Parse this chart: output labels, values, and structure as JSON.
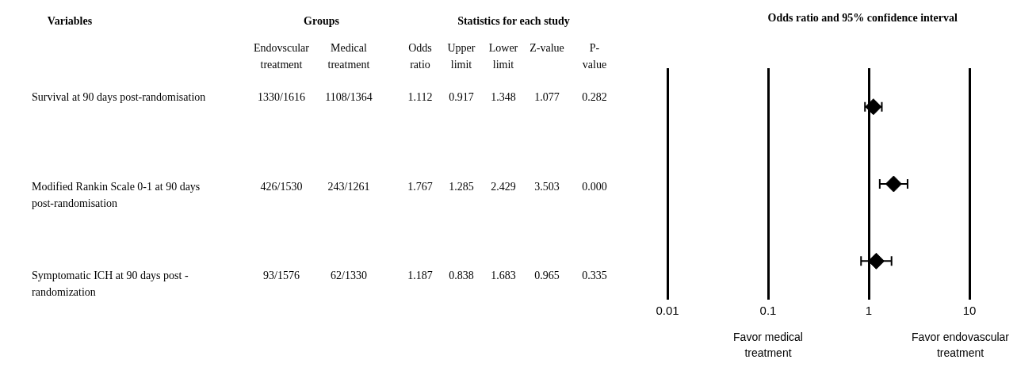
{
  "chart_data": [
    {
      "type": "other",
      "title": "Variables",
      "annotations": [
        "Groups",
        "Statistics for each study"
      ],
      "categories": [
        "Endovscular treatment",
        "Medical treatment",
        "Odds ratio",
        "Upper limit",
        "Lower limit",
        "Z-value",
        "P-value"
      ],
      "y_categories": [
        "Survival at 90 days post-randomisation",
        "Modified Rankin Scale 0-1 at 90 days post-randomisation",
        "Symptomatic ICH at 90 days post -randomization"
      ],
      "cell_labels": [
        [
          "1330/1616",
          "1108/1364",
          "1.112",
          "0.917",
          "1.348",
          "1.077",
          "0.282"
        ],
        [
          "426/1530",
          "243/1261",
          "1.767",
          "1.285",
          "2.429",
          "3.503",
          "0.000"
        ],
        [
          "93/1576",
          "62/1330",
          "1.187",
          "0.838",
          "1.683",
          "0.965",
          "0.335"
        ]
      ]
    },
    {
      "type": "scatter",
      "title": "Odds ratio and 95% confidence interval",
      "orientation": "horizontal",
      "categories": [
        null,
        null,
        null
      ],
      "values": [
        1.112,
        1.767,
        1.187
      ],
      "errors": [
        [
          0.917,
          1.348
        ],
        [
          1.285,
          2.429
        ],
        [
          0.838,
          1.683
        ]
      ],
      "color": "#000000",
      "marker": "diamond",
      "log": "x",
      "xlim": [
        0.01,
        10
      ],
      "xticks": [
        0.01,
        0.1,
        1,
        10
      ],
      "grid": "x",
      "tick_labels": "x",
      "annotations": [
        "Favor medical treatment",
        "Favor endovascular treatment"
      ]
    }
  ]
}
